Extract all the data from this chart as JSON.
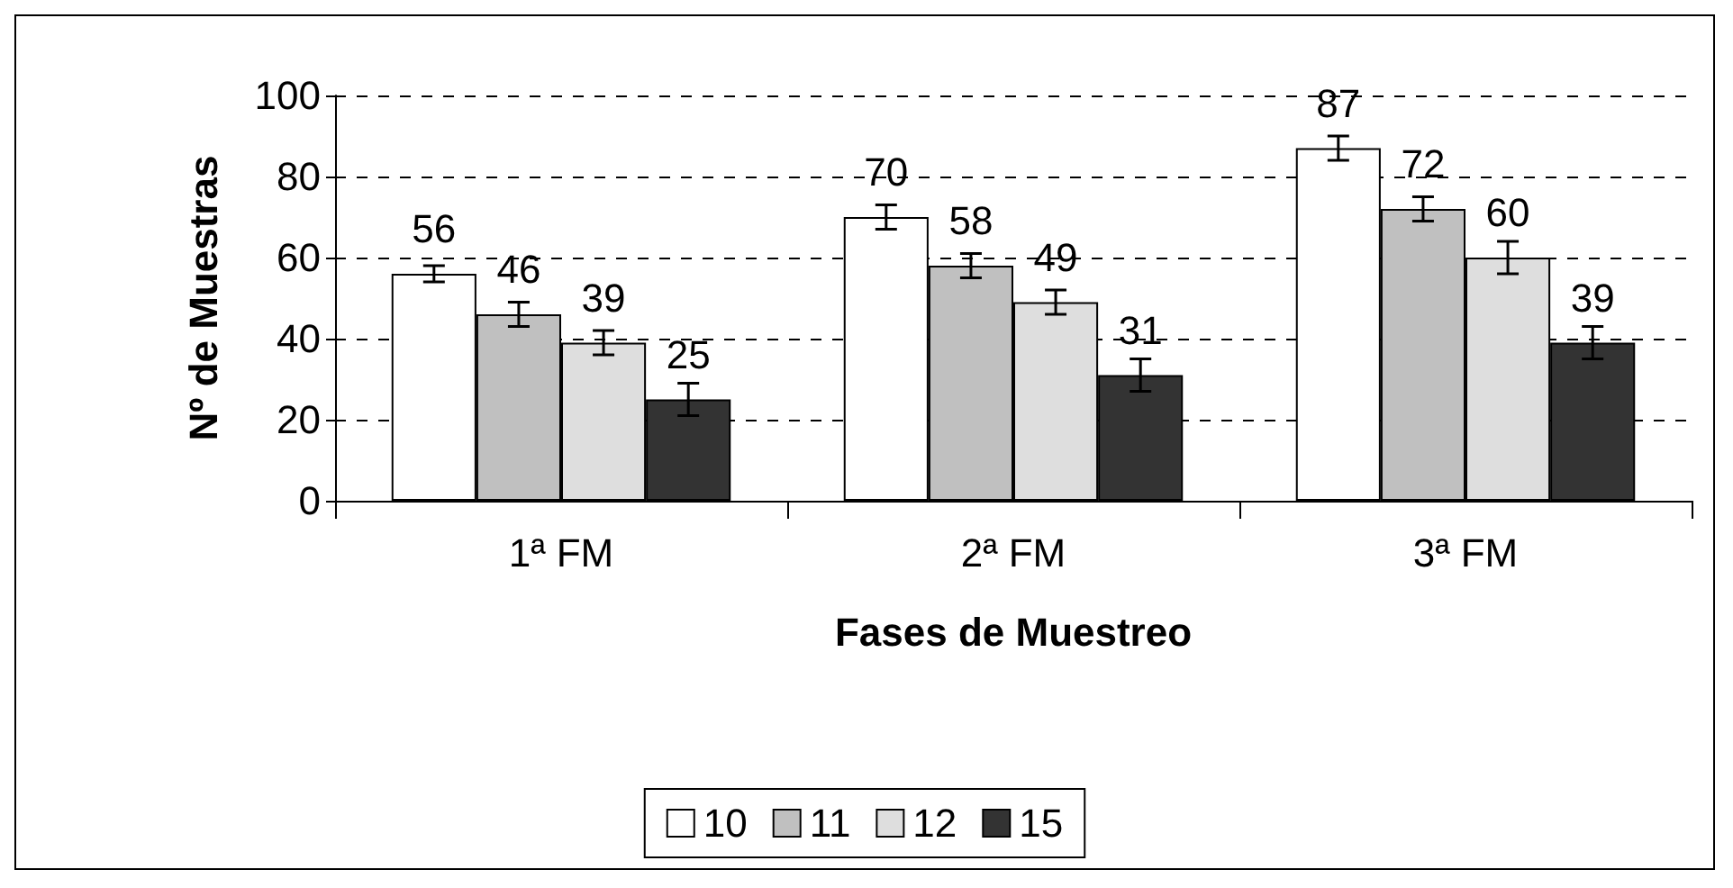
{
  "chart_data": {
    "type": "bar",
    "xlabel": "Fases de Muestreo",
    "ylabel": "Nº de Muestras",
    "categories": [
      "1ª FM",
      "2ª FM",
      "3ª FM"
    ],
    "series": [
      {
        "name": "10",
        "color": "#ffffff",
        "values": [
          56,
          70,
          87
        ],
        "errors": [
          2,
          3,
          3
        ]
      },
      {
        "name": "11",
        "color": "#c0c0c0",
        "values": [
          46,
          58,
          72
        ],
        "errors": [
          3,
          3,
          3
        ]
      },
      {
        "name": "12",
        "color": "#dedede",
        "values": [
          39,
          49,
          60
        ],
        "errors": [
          3,
          3,
          4
        ]
      },
      {
        "name": "15",
        "color": "#333333",
        "values": [
          25,
          31,
          39
        ],
        "errors": [
          4,
          4,
          4
        ]
      }
    ],
    "ylim": [
      0,
      100
    ],
    "yticks": [
      0,
      20,
      40,
      60,
      80,
      100
    ],
    "grid": "y",
    "legend": "bottom",
    "data_labels": true
  }
}
